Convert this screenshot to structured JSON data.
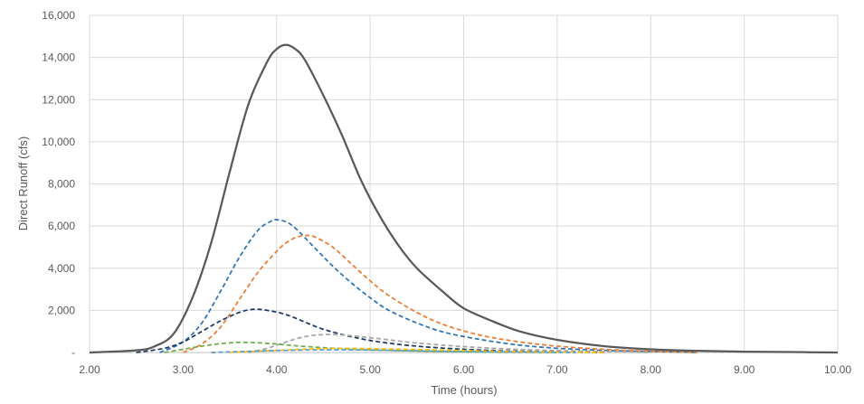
{
  "chart_data": {
    "type": "line",
    "xlabel": "Time (hours)",
    "ylabel": "Direct Runoff (cfs)",
    "xlim": [
      2,
      10
    ],
    "ylim": [
      0,
      16000
    ],
    "x_ticks": [
      2,
      3,
      4,
      5,
      6,
      7,
      8,
      9,
      10
    ],
    "x_tick_labels": [
      "2.00",
      "3.00",
      "4.00",
      "5.00",
      "6.00",
      "7.00",
      "8.00",
      "9.00",
      "10.00"
    ],
    "y_ticks": [
      0,
      2000,
      4000,
      6000,
      8000,
      10000,
      12000,
      14000,
      16000
    ],
    "y_tick_labels": [
      "-",
      "2,000",
      "4,000",
      "6,000",
      "8,000",
      "10,000",
      "12,000",
      "14,000",
      "16,000"
    ],
    "grid": true,
    "legend": "none",
    "series": [
      {
        "color": "#595959",
        "dash": "solid",
        "x": [
          2.0,
          2.5,
          2.7,
          2.9,
          3.1,
          3.3,
          3.5,
          3.7,
          3.9,
          4.0,
          4.1,
          4.2,
          4.3,
          4.5,
          4.7,
          4.9,
          5.1,
          5.3,
          5.5,
          5.8,
          6.0,
          6.3,
          6.6,
          7.0,
          7.5,
          8.0,
          8.5,
          9.0,
          9.5,
          10.0
        ],
        "y": [
          0,
          100,
          300,
          900,
          2600,
          5200,
          8600,
          11800,
          13800,
          14400,
          14600,
          14400,
          13900,
          12200,
          10300,
          8200,
          6500,
          5100,
          4000,
          2800,
          2100,
          1500,
          1000,
          600,
          300,
          150,
          80,
          40,
          20,
          0
        ]
      },
      {
        "color": "#2e75b6",
        "dash": "dashed",
        "x": [
          2.75,
          3.0,
          3.2,
          3.4,
          3.6,
          3.8,
          3.95,
          4.0,
          4.1,
          4.2,
          4.4,
          4.6,
          4.8,
          5.0,
          5.2,
          5.5,
          5.8,
          6.2,
          6.6,
          7.0,
          7.5,
          8.0,
          8.5
        ],
        "y": [
          0,
          500,
          1400,
          2900,
          4500,
          5800,
          6250,
          6300,
          6200,
          5900,
          5000,
          4100,
          3300,
          2600,
          2000,
          1400,
          950,
          600,
          350,
          200,
          100,
          50,
          0
        ]
      },
      {
        "color": "#ed7d31",
        "dash": "dashed",
        "x": [
          3.0,
          3.2,
          3.4,
          3.6,
          3.8,
          4.0,
          4.1,
          4.2,
          4.3,
          4.4,
          4.6,
          4.8,
          5.0,
          5.2,
          5.5,
          5.8,
          6.2,
          6.6,
          7.0,
          7.5,
          8.0,
          8.5
        ],
        "y": [
          0,
          400,
          1200,
          2500,
          3800,
          4800,
          5200,
          5450,
          5550,
          5500,
          5000,
          4200,
          3400,
          2700,
          1900,
          1300,
          800,
          500,
          300,
          150,
          60,
          0
        ]
      },
      {
        "color": "#1f3864",
        "dash": "dashed",
        "x": [
          2.5,
          2.8,
          3.0,
          3.2,
          3.4,
          3.6,
          3.75,
          3.9,
          4.1,
          4.3,
          4.5,
          4.8,
          5.1,
          5.5,
          6.0,
          6.5,
          7.0,
          7.5
        ],
        "y": [
          0,
          200,
          500,
          1000,
          1500,
          1900,
          2050,
          2000,
          1800,
          1450,
          1100,
          750,
          500,
          300,
          150,
          70,
          30,
          0
        ]
      },
      {
        "color": "#a5a5a5",
        "dash": "dashed",
        "x": [
          3.7,
          3.9,
          4.1,
          4.3,
          4.5,
          4.7,
          4.9,
          5.2,
          5.5,
          6.0,
          6.5,
          7.0,
          7.5,
          8.0
        ],
        "y": [
          0,
          200,
          500,
          750,
          850,
          830,
          750,
          600,
          450,
          280,
          160,
          90,
          40,
          0
        ]
      },
      {
        "color": "#70ad47",
        "dash": "dashed",
        "x": [
          2.8,
          3.0,
          3.2,
          3.4,
          3.6,
          3.8,
          4.0,
          4.2,
          4.5,
          4.8,
          5.2,
          5.6,
          6.0,
          6.5,
          7.0
        ],
        "y": [
          0,
          150,
          300,
          420,
          480,
          460,
          400,
          320,
          230,
          160,
          100,
          60,
          30,
          10,
          0
        ]
      },
      {
        "color": "#ffc000",
        "dash": "dashed",
        "x": [
          3.5,
          3.8,
          4.1,
          4.4,
          4.7,
          5.0,
          5.4,
          5.8,
          6.2,
          6.8,
          7.5
        ],
        "y": [
          0,
          60,
          120,
          170,
          190,
          180,
          150,
          110,
          70,
          30,
          0
        ]
      },
      {
        "color": "#5b9bd5",
        "dash": "dashed",
        "x": [
          3.3,
          3.6,
          4.0,
          4.4,
          4.8,
          5.2,
          5.6,
          6.0,
          6.6,
          7.2
        ],
        "y": [
          0,
          40,
          90,
          120,
          120,
          100,
          70,
          45,
          20,
          0
        ]
      }
    ]
  }
}
